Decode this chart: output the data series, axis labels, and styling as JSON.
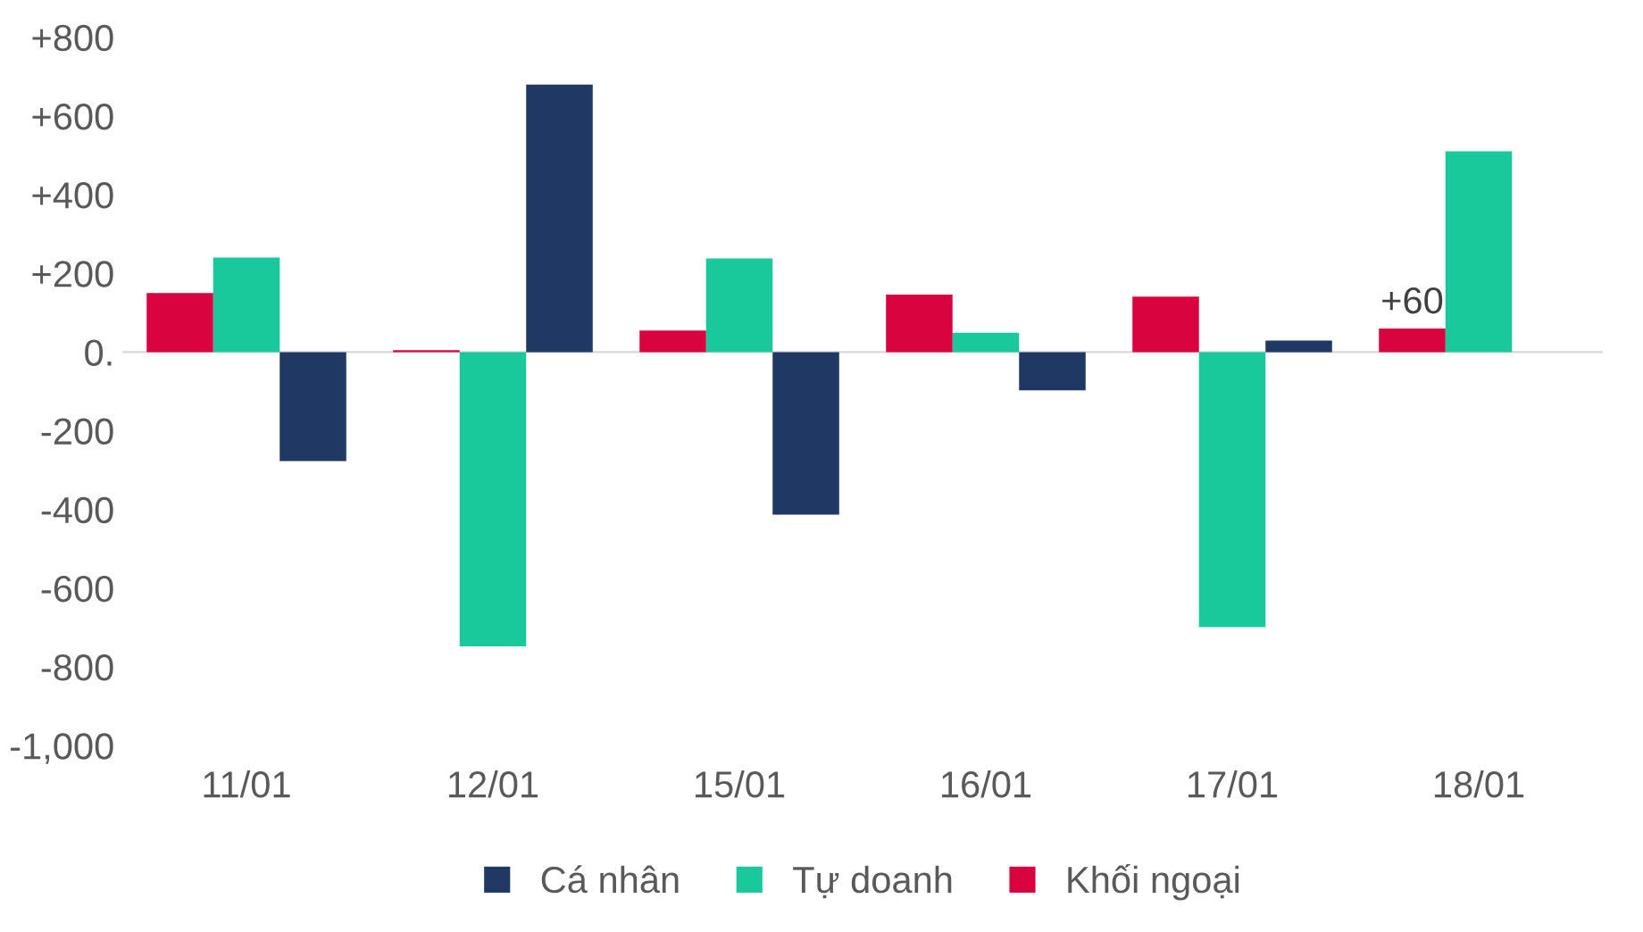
{
  "chart_data": {
    "type": "bar",
    "categories": [
      "11/01",
      "12/01",
      "15/01",
      "16/01",
      "17/01",
      "18/01"
    ],
    "series": [
      {
        "name": "Cá nhân",
        "color": "#203864",
        "values": [
          -277,
          680,
          -413,
          -97,
          29,
          null
        ]
      },
      {
        "name": "Tự doanh",
        "color": "#19c99b",
        "values": [
          240,
          -748,
          238,
          49,
          -699,
          510
        ]
      },
      {
        "name": "Khối ngoại",
        "color": "#d9043f",
        "values": [
          150,
          5,
          55,
          146,
          141,
          60
        ],
        "value_labels": [
          null,
          null,
          null,
          null,
          null,
          "+60"
        ]
      }
    ],
    "ylim": [
      -1000,
      800
    ],
    "yticks": [
      {
        "value": 800,
        "label": "+800"
      },
      {
        "value": 600,
        "label": "+600"
      },
      {
        "value": 400,
        "label": "+400"
      },
      {
        "value": 200,
        "label": "+200"
      },
      {
        "value": 0,
        "label": "0."
      },
      -200,
      -400,
      -600,
      -800,
      {
        "value": -1000,
        "label": "-1,000"
      }
    ],
    "legend": "bottom"
  }
}
